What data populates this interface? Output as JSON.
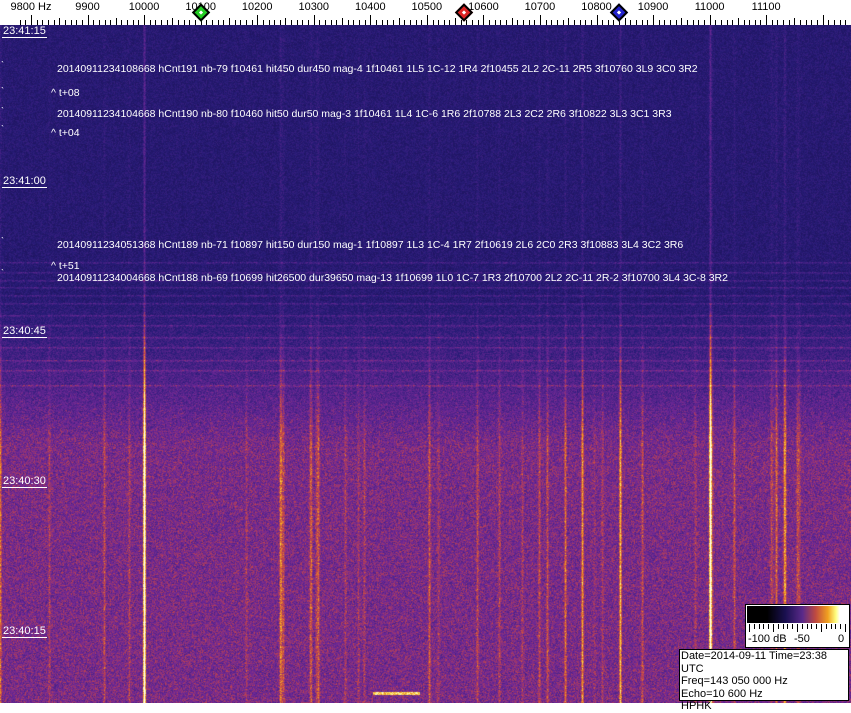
{
  "chart_data": {
    "type": "heatmap",
    "x_unit_label": "Hz",
    "x_ticks": [
      9800,
      9900,
      10000,
      10100,
      10200,
      10300,
      10400,
      10500,
      10600,
      10700,
      10800,
      10900,
      11000,
      11100
    ],
    "x_tick_labels": [
      "9800 Hz",
      "9900",
      "10000",
      "10100",
      "10200",
      "10300",
      "10400",
      "10500",
      "10600",
      "10700",
      "10800",
      "10900",
      "11000",
      "11100"
    ],
    "xlim": [
      9780,
      11250
    ],
    "y_tick_labels": [
      "23:41:15",
      "23:41:00",
      "23:40:45",
      "23:40:30",
      "23:40:15"
    ],
    "markers": [
      {
        "freq": 10100,
        "color": "#22cc22"
      },
      {
        "freq": 10565,
        "color": "#dd2222"
      },
      {
        "freq": 10840,
        "color": "#2222cc"
      }
    ],
    "bright_lines_hz": [
      10000,
      11000
    ],
    "detections": [
      {
        "text": "20140911234108668 hCnt191 nb-79 f10461 hit450 dur450 mag-4 1f10461 1L5 1C-12 1R4 2f10455 2L2 2C-11 2R5 3f10760 3L9 3C0 3R2",
        "delta": "^ t+08"
      },
      {
        "text": "20140911234104668 hCnt190 nb-80 f10460 hit50 dur50 mag-3 1f10461 1L4 1C-6 1R6 2f10788 2L3 2C2 2R6 3f10822 3L3 3C1 3R3",
        "delta": "^ t+04"
      },
      {
        "text": "20140911234051368 hCnt189 nb-71 f10897 hit150 dur150 mag-1 1f10897 1L3 1C-4 1R7 2f10619 2L6 2C0 2R3 3f10883 3L4 3C2 3R6",
        "delta": "^ t+51"
      },
      {
        "text": "20140911234004668 hCnt188 nb-69 f10699 hit26500 dur39650 mag-13 1f10699 1L0 1C-7 1R3 2f10700 2L2 2C-11 2R-2 3f10700 3L4 3C-8 3R2",
        "delta": ""
      }
    ],
    "colorbar": {
      "labels": [
        "-100 dB",
        "-50",
        "0"
      ],
      "range_db": [
        -100,
        0
      ]
    },
    "colors": {
      "background": "#1e1664",
      "bright": "#ffd030"
    }
  },
  "info": {
    "line1": "Date=2014-09-11 Time=23:38 UTC",
    "line2": "Freq=143 050 000 Hz",
    "line3": "Echo=10 600 Hz",
    "line4": "HPHK"
  }
}
